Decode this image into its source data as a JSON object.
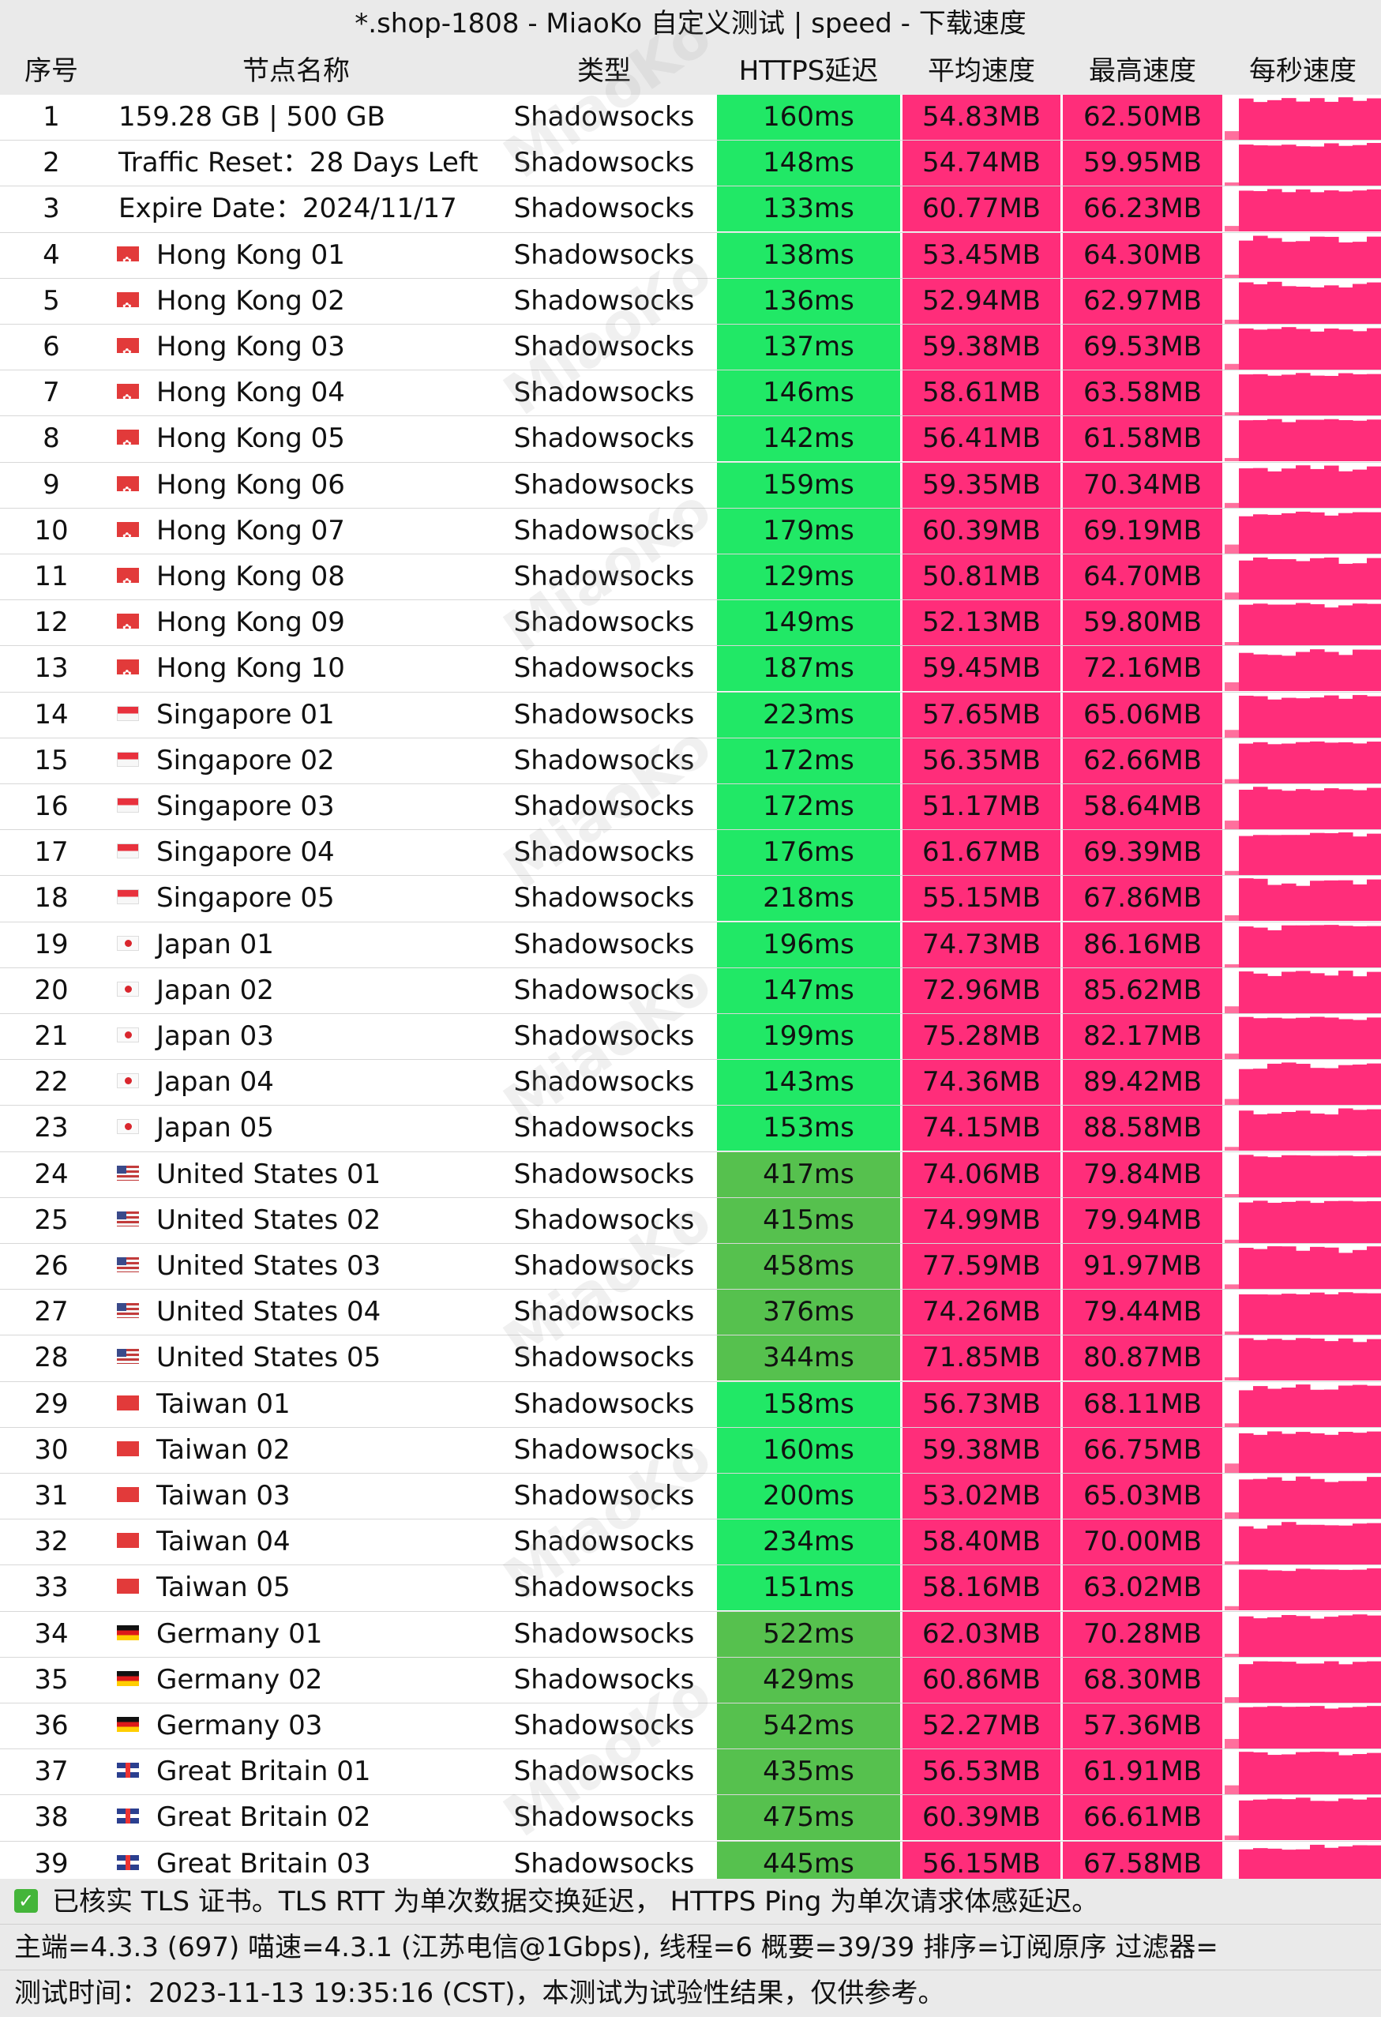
{
  "title": "*.shop-1808 - MiaoKo 自定义测试 | speed - 下载速度",
  "columns": [
    "序号",
    "节点名称",
    "类型",
    "HTTPS延迟",
    "平均速度",
    "最高速度",
    "每秒速度"
  ],
  "colors": {
    "latency_fast": "#21e866",
    "latency_slow": "#56c14e",
    "speed": "#ff2d7a",
    "spark": "#ff2d7a",
    "spark_light": "#ff6f9d",
    "header_bg": "#eaeaea"
  },
  "watermark": "MiaoKo",
  "rows": [
    {
      "idx": "1",
      "name": "159.28 GB | 500 GB",
      "flag": "",
      "type": "Shadowsocks",
      "latency": "160ms",
      "avg": "54.83MB",
      "max": "62.50MB"
    },
    {
      "idx": "2",
      "name": "Traffic Reset：28 Days Left",
      "flag": "",
      "type": "Shadowsocks",
      "latency": "148ms",
      "avg": "54.74MB",
      "max": "59.95MB"
    },
    {
      "idx": "3",
      "name": "Expire Date：2024/11/17",
      "flag": "",
      "type": "Shadowsocks",
      "latency": "133ms",
      "avg": "60.77MB",
      "max": "66.23MB"
    },
    {
      "idx": "4",
      "name": "Hong Kong 01",
      "flag": "hk",
      "type": "Shadowsocks",
      "latency": "138ms",
      "avg": "53.45MB",
      "max": "64.30MB"
    },
    {
      "idx": "5",
      "name": "Hong Kong 02",
      "flag": "hk",
      "type": "Shadowsocks",
      "latency": "136ms",
      "avg": "52.94MB",
      "max": "62.97MB"
    },
    {
      "idx": "6",
      "name": "Hong Kong 03",
      "flag": "hk",
      "type": "Shadowsocks",
      "latency": "137ms",
      "avg": "59.38MB",
      "max": "69.53MB"
    },
    {
      "idx": "7",
      "name": "Hong Kong 04",
      "flag": "hk",
      "type": "Shadowsocks",
      "latency": "146ms",
      "avg": "58.61MB",
      "max": "63.58MB"
    },
    {
      "idx": "8",
      "name": "Hong Kong 05",
      "flag": "hk",
      "type": "Shadowsocks",
      "latency": "142ms",
      "avg": "56.41MB",
      "max": "61.58MB"
    },
    {
      "idx": "9",
      "name": "Hong Kong 06",
      "flag": "hk",
      "type": "Shadowsocks",
      "latency": "159ms",
      "avg": "59.35MB",
      "max": "70.34MB"
    },
    {
      "idx": "10",
      "name": "Hong Kong 07",
      "flag": "hk",
      "type": "Shadowsocks",
      "latency": "179ms",
      "avg": "60.39MB",
      "max": "69.19MB"
    },
    {
      "idx": "11",
      "name": "Hong Kong 08",
      "flag": "hk",
      "type": "Shadowsocks",
      "latency": "129ms",
      "avg": "50.81MB",
      "max": "64.70MB"
    },
    {
      "idx": "12",
      "name": "Hong Kong 09",
      "flag": "hk",
      "type": "Shadowsocks",
      "latency": "149ms",
      "avg": "52.13MB",
      "max": "59.80MB"
    },
    {
      "idx": "13",
      "name": "Hong Kong 10",
      "flag": "hk",
      "type": "Shadowsocks",
      "latency": "187ms",
      "avg": "59.45MB",
      "max": "72.16MB"
    },
    {
      "idx": "14",
      "name": "Singapore 01",
      "flag": "sg",
      "type": "Shadowsocks",
      "latency": "223ms",
      "avg": "57.65MB",
      "max": "65.06MB"
    },
    {
      "idx": "15",
      "name": "Singapore 02",
      "flag": "sg",
      "type": "Shadowsocks",
      "latency": "172ms",
      "avg": "56.35MB",
      "max": "62.66MB"
    },
    {
      "idx": "16",
      "name": "Singapore 03",
      "flag": "sg",
      "type": "Shadowsocks",
      "latency": "172ms",
      "avg": "51.17MB",
      "max": "58.64MB"
    },
    {
      "idx": "17",
      "name": "Singapore 04",
      "flag": "sg",
      "type": "Shadowsocks",
      "latency": "176ms",
      "avg": "61.67MB",
      "max": "69.39MB"
    },
    {
      "idx": "18",
      "name": "Singapore 05",
      "flag": "sg",
      "type": "Shadowsocks",
      "latency": "218ms",
      "avg": "55.15MB",
      "max": "67.86MB"
    },
    {
      "idx": "19",
      "name": "Japan 01",
      "flag": "jp",
      "type": "Shadowsocks",
      "latency": "196ms",
      "avg": "74.73MB",
      "max": "86.16MB"
    },
    {
      "idx": "20",
      "name": "Japan 02",
      "flag": "jp",
      "type": "Shadowsocks",
      "latency": "147ms",
      "avg": "72.96MB",
      "max": "85.62MB"
    },
    {
      "idx": "21",
      "name": "Japan 03",
      "flag": "jp",
      "type": "Shadowsocks",
      "latency": "199ms",
      "avg": "75.28MB",
      "max": "82.17MB"
    },
    {
      "idx": "22",
      "name": "Japan 04",
      "flag": "jp",
      "type": "Shadowsocks",
      "latency": "143ms",
      "avg": "74.36MB",
      "max": "89.42MB"
    },
    {
      "idx": "23",
      "name": "Japan 05",
      "flag": "jp",
      "type": "Shadowsocks",
      "latency": "153ms",
      "avg": "74.15MB",
      "max": "88.58MB"
    },
    {
      "idx": "24",
      "name": "United States 01",
      "flag": "us",
      "type": "Shadowsocks",
      "latency": "417ms",
      "avg": "74.06MB",
      "max": "79.84MB"
    },
    {
      "idx": "25",
      "name": "United States 02",
      "flag": "us",
      "type": "Shadowsocks",
      "latency": "415ms",
      "avg": "74.99MB",
      "max": "79.94MB"
    },
    {
      "idx": "26",
      "name": "United States 03",
      "flag": "us",
      "type": "Shadowsocks",
      "latency": "458ms",
      "avg": "77.59MB",
      "max": "91.97MB"
    },
    {
      "idx": "27",
      "name": "United States 04",
      "flag": "us",
      "type": "Shadowsocks",
      "latency": "376ms",
      "avg": "74.26MB",
      "max": "79.44MB"
    },
    {
      "idx": "28",
      "name": "United States 05",
      "flag": "us",
      "type": "Shadowsocks",
      "latency": "344ms",
      "avg": "71.85MB",
      "max": "80.87MB"
    },
    {
      "idx": "29",
      "name": "Taiwan 01",
      "flag": "tw",
      "type": "Shadowsocks",
      "latency": "158ms",
      "avg": "56.73MB",
      "max": "68.11MB"
    },
    {
      "idx": "30",
      "name": "Taiwan 02",
      "flag": "tw",
      "type": "Shadowsocks",
      "latency": "160ms",
      "avg": "59.38MB",
      "max": "66.75MB"
    },
    {
      "idx": "31",
      "name": "Taiwan 03",
      "flag": "tw",
      "type": "Shadowsocks",
      "latency": "200ms",
      "avg": "53.02MB",
      "max": "65.03MB"
    },
    {
      "idx": "32",
      "name": "Taiwan 04",
      "flag": "tw",
      "type": "Shadowsocks",
      "latency": "234ms",
      "avg": "58.40MB",
      "max": "70.00MB"
    },
    {
      "idx": "33",
      "name": "Taiwan 05",
      "flag": "tw",
      "type": "Shadowsocks",
      "latency": "151ms",
      "avg": "58.16MB",
      "max": "63.02MB"
    },
    {
      "idx": "34",
      "name": "Germany 01",
      "flag": "de",
      "type": "Shadowsocks",
      "latency": "522ms",
      "avg": "62.03MB",
      "max": "70.28MB"
    },
    {
      "idx": "35",
      "name": "Germany 02",
      "flag": "de",
      "type": "Shadowsocks",
      "latency": "429ms",
      "avg": "60.86MB",
      "max": "68.30MB"
    },
    {
      "idx": "36",
      "name": "Germany 03",
      "flag": "de",
      "type": "Shadowsocks",
      "latency": "542ms",
      "avg": "52.27MB",
      "max": "57.36MB"
    },
    {
      "idx": "37",
      "name": "Great Britain 01",
      "flag": "gb",
      "type": "Shadowsocks",
      "latency": "435ms",
      "avg": "56.53MB",
      "max": "61.91MB"
    },
    {
      "idx": "38",
      "name": "Great Britain 02",
      "flag": "gb",
      "type": "Shadowsocks",
      "latency": "475ms",
      "avg": "60.39MB",
      "max": "66.61MB"
    },
    {
      "idx": "39",
      "name": "Great Britain 03",
      "flag": "gb",
      "type": "Shadowsocks",
      "latency": "445ms",
      "avg": "56.15MB",
      "max": "67.58MB"
    }
  ],
  "footer": {
    "line1": "已核实 TLS 证书。TLS RTT 为单次数据交换延迟， HTTPS Ping 为单次请求体感延迟。",
    "line2": "主端=4.3.3 (697) 喵速=4.3.1 (江苏电信@1Gbps), 线程=6 概要=39/39 排序=订阅原序 过滤器=",
    "line3": "测试时间：2023-11-13 19:35:16 (CST)，本测试为试验性结果，仅供参考。"
  }
}
